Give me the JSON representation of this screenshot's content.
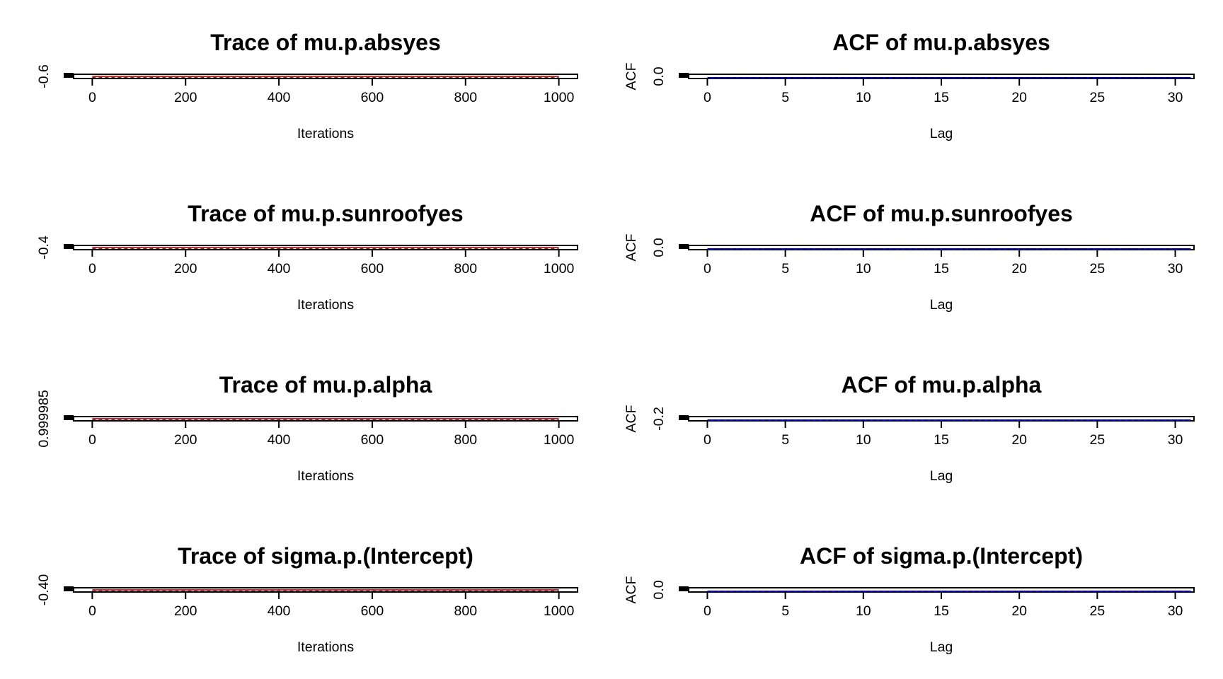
{
  "colors": {
    "chain_line": "#d62728",
    "mean_line": "#000000",
    "acf_line": "#0000ff",
    "marker": "#000000",
    "background": "#ffffff"
  },
  "chart_data": [
    {
      "type": "line",
      "title": "Trace of mu.p.absyes",
      "xlabel": "Iterations",
      "ylabel": "",
      "xlim": [
        -40,
        1040
      ],
      "xticks": [
        0,
        200,
        400,
        600,
        800,
        1000
      ],
      "x_range": [
        0,
        1000
      ],
      "ytick_labels": [
        "-0.6"
      ],
      "series": [
        {
          "role": "chain",
          "values": [
            -0.6,
            -0.6
          ]
        },
        {
          "role": "mean",
          "values": [
            -0.6,
            -0.6
          ]
        }
      ]
    },
    {
      "type": "line",
      "title": "ACF of mu.p.absyes",
      "xlabel": "Lag",
      "ylabel": "ACF",
      "xlim": [
        -1.2,
        31.2
      ],
      "xticks": [
        0,
        5,
        10,
        15,
        20,
        25,
        30
      ],
      "x_range": [
        0,
        31
      ],
      "ytick_labels": [
        "0.0"
      ],
      "series": [
        {
          "role": "acf",
          "values": [
            0.0,
            0.0
          ]
        },
        {
          "role": "bound",
          "values": [
            0.0,
            0.0
          ]
        }
      ]
    },
    {
      "type": "line",
      "title": "Trace of mu.p.sunroofyes",
      "xlabel": "Iterations",
      "ylabel": "",
      "xlim": [
        -40,
        1040
      ],
      "xticks": [
        0,
        200,
        400,
        600,
        800,
        1000
      ],
      "x_range": [
        0,
        1000
      ],
      "ytick_labels": [
        "-0.4"
      ],
      "series": [
        {
          "role": "chain",
          "values": [
            -0.4,
            -0.4
          ]
        },
        {
          "role": "mean",
          "values": [
            -0.4,
            -0.4
          ]
        }
      ]
    },
    {
      "type": "line",
      "title": "ACF of mu.p.sunroofyes",
      "xlabel": "Lag",
      "ylabel": "ACF",
      "xlim": [
        -1.2,
        31.2
      ],
      "xticks": [
        0,
        5,
        10,
        15,
        20,
        25,
        30
      ],
      "x_range": [
        0,
        31
      ],
      "ytick_labels": [
        "0.0"
      ],
      "series": [
        {
          "role": "acf",
          "values": [
            0.0,
            0.0
          ]
        },
        {
          "role": "bound",
          "values": [
            0.0,
            0.0
          ]
        }
      ]
    },
    {
      "type": "line",
      "title": "Trace of mu.p.alpha",
      "xlabel": "Iterations",
      "ylabel": "",
      "xlim": [
        -40,
        1040
      ],
      "xticks": [
        0,
        200,
        400,
        600,
        800,
        1000
      ],
      "x_range": [
        0,
        1000
      ],
      "ytick_labels": [
        "0.999985"
      ],
      "series": [
        {
          "role": "chain",
          "values": [
            0.999985,
            0.999985
          ]
        },
        {
          "role": "mean",
          "values": [
            0.999985,
            0.999985
          ]
        }
      ]
    },
    {
      "type": "line",
      "title": "ACF of mu.p.alpha",
      "xlabel": "Lag",
      "ylabel": "ACF",
      "xlim": [
        -1.2,
        31.2
      ],
      "xticks": [
        0,
        5,
        10,
        15,
        20,
        25,
        30
      ],
      "x_range": [
        0,
        31
      ],
      "ytick_labels": [
        "-0.2"
      ],
      "series": [
        {
          "role": "acf",
          "values": [
            -0.2,
            -0.2
          ]
        },
        {
          "role": "bound",
          "values": [
            -0.2,
            -0.2
          ]
        }
      ]
    },
    {
      "type": "line",
      "title": "Trace of sigma.p.(Intercept)",
      "xlabel": "Iterations",
      "ylabel": "",
      "xlim": [
        -40,
        1040
      ],
      "xticks": [
        0,
        200,
        400,
        600,
        800,
        1000
      ],
      "x_range": [
        0,
        1000
      ],
      "ytick_labels": [
        "-0.40"
      ],
      "series": [
        {
          "role": "chain",
          "values": [
            -0.4,
            -0.4
          ]
        },
        {
          "role": "mean",
          "values": [
            -0.4,
            -0.4
          ]
        }
      ]
    },
    {
      "type": "line",
      "title": "ACF of sigma.p.(Intercept)",
      "xlabel": "Lag",
      "ylabel": "ACF",
      "xlim": [
        -1.2,
        31.2
      ],
      "xticks": [
        0,
        5,
        10,
        15,
        20,
        25,
        30
      ],
      "x_range": [
        0,
        31
      ],
      "ytick_labels": [
        "0.0"
      ],
      "series": [
        {
          "role": "acf",
          "values": [
            0.0,
            0.0
          ]
        },
        {
          "role": "bound",
          "values": [
            0.0,
            0.0
          ]
        }
      ]
    }
  ]
}
